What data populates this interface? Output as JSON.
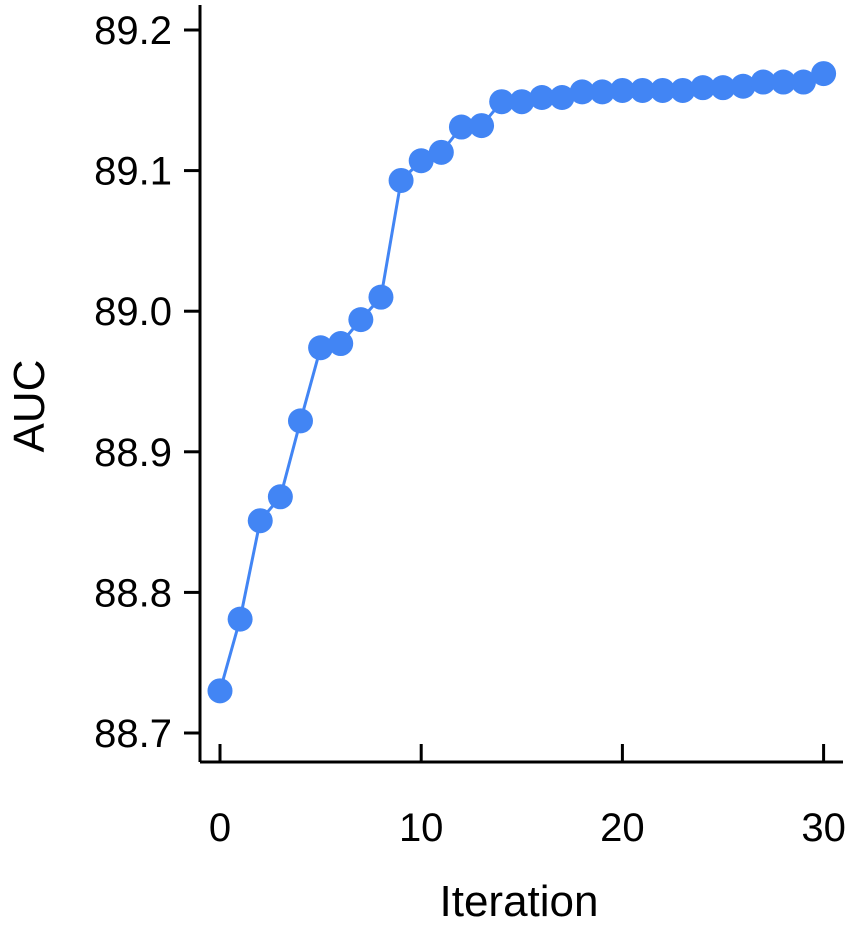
{
  "chart_data": {
    "type": "line",
    "title": "",
    "xlabel": "Iteration",
    "ylabel": "AUC",
    "xlim": [
      -1,
      31
    ],
    "ylim": [
      88.68,
      89.22
    ],
    "xticks": [
      0,
      10,
      20,
      30
    ],
    "xtick_labels": [
      "0",
      "10",
      "20",
      "30"
    ],
    "yticks": [
      88.7,
      88.8,
      88.9,
      89.0,
      89.1,
      89.2
    ],
    "ytick_labels": [
      "88.7",
      "88.8",
      "88.9",
      "89.0",
      "89.1",
      "89.2"
    ],
    "grid": false,
    "legend": "none",
    "colors": {
      "series": "#4285f4",
      "axes": "#000000"
    },
    "series": [
      {
        "x": [
          0,
          1,
          2,
          3,
          4,
          5,
          6,
          7,
          8,
          9,
          10,
          11,
          12,
          13,
          14,
          15,
          16,
          17,
          18,
          19,
          20,
          21,
          22,
          23,
          24,
          25,
          26,
          27,
          28,
          29,
          30
        ],
        "values": [
          88.73,
          88.781,
          88.851,
          88.868,
          88.922,
          88.974,
          88.977,
          88.994,
          89.01,
          89.093,
          89.107,
          89.113,
          89.131,
          89.132,
          89.149,
          89.149,
          89.152,
          89.152,
          89.156,
          89.156,
          89.157,
          89.157,
          89.157,
          89.157,
          89.159,
          89.159,
          89.16,
          89.163,
          89.163,
          89.163,
          89.169
        ]
      }
    ]
  }
}
